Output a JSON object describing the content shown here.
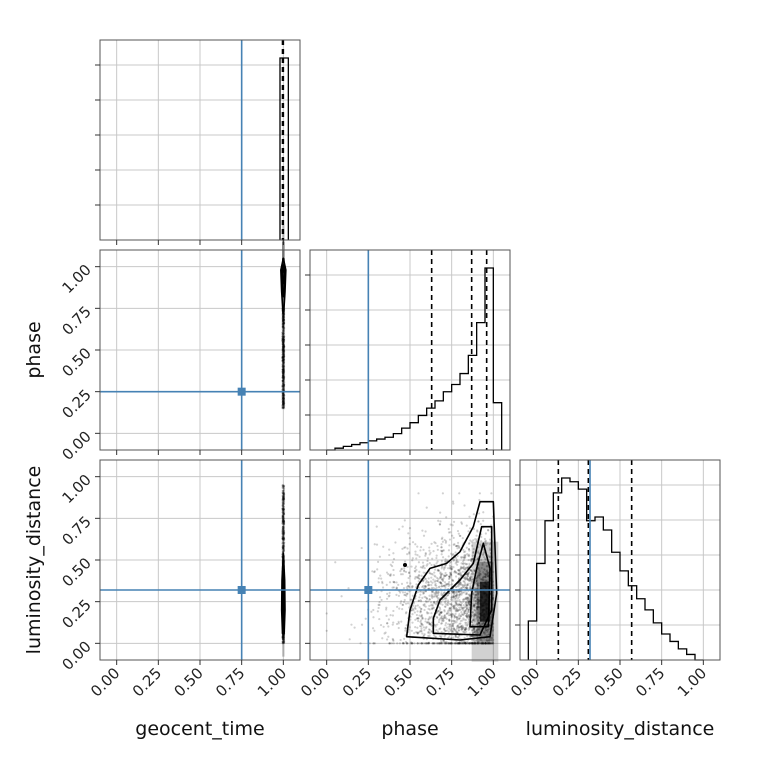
{
  "chart_data": {
    "type": "corner",
    "parameters": [
      {
        "name": "geocent_time",
        "label": "geocent_time"
      },
      {
        "name": "phase",
        "label": "phase"
      },
      {
        "name": "luminosity_distance",
        "label": "luminosity_distance"
      }
    ],
    "tick_values": [
      0.0,
      0.25,
      0.5,
      0.75,
      1.0
    ],
    "tick_labels": [
      "0.00",
      "0.25",
      "0.50",
      "0.75",
      "1.00"
    ],
    "axis_range": [
      -0.1,
      1.1
    ],
    "grid": true,
    "truth_color": "#4682b4",
    "truths": {
      "geocent_time": 0.75,
      "phase": 0.25,
      "luminosity_distance": 0.32
    },
    "quantiles": {
      "geocent_time": [
        0.995,
        0.998,
        1.0
      ],
      "phase": [
        0.63,
        0.87,
        0.96
      ],
      "luminosity_distance": [
        0.13,
        0.31,
        0.57
      ]
    },
    "histograms": {
      "geocent_time": {
        "edges": [
          0.98,
          1.0,
          1.03
        ],
        "counts": [
          1.0,
          1.0
        ]
      },
      "phase": {
        "edges": [
          0.0,
          0.05,
          0.1,
          0.15,
          0.2,
          0.25,
          0.3,
          0.35,
          0.4,
          0.45,
          0.5,
          0.55,
          0.6,
          0.65,
          0.7,
          0.75,
          0.8,
          0.85,
          0.9,
          0.95,
          1.0,
          1.05
        ],
        "counts": [
          0.0,
          0.01,
          0.02,
          0.03,
          0.04,
          0.05,
          0.06,
          0.07,
          0.09,
          0.12,
          0.15,
          0.19,
          0.23,
          0.27,
          0.32,
          0.36,
          0.42,
          0.52,
          0.7,
          1.0,
          0.26
        ]
      },
      "luminosity_distance": {
        "edges": [
          -0.05,
          0.0,
          0.05,
          0.1,
          0.15,
          0.2,
          0.25,
          0.3,
          0.35,
          0.4,
          0.45,
          0.5,
          0.55,
          0.6,
          0.65,
          0.7,
          0.75,
          0.8,
          0.85,
          0.9,
          0.95,
          1.0
        ],
        "counts": [
          0.21,
          0.52,
          0.75,
          0.9,
          0.98,
          0.96,
          0.92,
          0.75,
          0.77,
          0.7,
          0.58,
          0.48,
          0.4,
          0.33,
          0.27,
          0.2,
          0.14,
          0.1,
          0.06,
          0.03,
          0.0
        ]
      }
    },
    "joint": {
      "phase_vs_geocent_time": {
        "x": "geocent_time",
        "y": "phase",
        "scatter_x_range": [
          0.995,
          1.005
        ],
        "scatter_y_range": [
          0.15,
          0.75
        ],
        "density_peak": [
          1.0,
          0.95
        ],
        "contours": [
          [
            [
              0.985,
              0.98
            ],
            [
              1.0,
              1.05
            ],
            [
              1.015,
              0.98
            ],
            [
              1.01,
              0.85
            ],
            [
              1.002,
              0.72
            ],
            [
              0.998,
              0.72
            ],
            [
              0.99,
              0.85
            ]
          ],
          [
            [
              0.99,
              0.97
            ],
            [
              1.0,
              1.01
            ],
            [
              1.01,
              0.97
            ],
            [
              1.006,
              0.88
            ],
            [
              1.0,
              0.82
            ],
            [
              0.994,
              0.88
            ]
          ],
          [
            [
              0.993,
              0.96
            ],
            [
              1.0,
              0.98
            ],
            [
              1.007,
              0.96
            ],
            [
              1.0,
              0.9
            ]
          ]
        ]
      },
      "luminosity_distance_vs_geocent_time": {
        "x": "geocent_time",
        "y": "luminosity_distance",
        "scatter_x_range": [
          0.995,
          1.005
        ],
        "scatter_y_range": [
          0.0,
          0.95
        ],
        "density_peak": [
          1.0,
          0.22
        ],
        "contours": [
          [
            [
              0.995,
              0.06
            ],
            [
              1.005,
              0.06
            ],
            [
              1.01,
              0.2
            ],
            [
              1.008,
              0.38
            ],
            [
              1.0,
              0.54
            ],
            [
              0.992,
              0.38
            ],
            [
              0.99,
              0.2
            ]
          ],
          [
            [
              0.997,
              0.09
            ],
            [
              1.003,
              0.09
            ],
            [
              1.006,
              0.2
            ],
            [
              1.004,
              0.32
            ],
            [
              1.0,
              0.42
            ],
            [
              0.996,
              0.32
            ],
            [
              0.994,
              0.2
            ]
          ],
          [
            [
              0.998,
              0.14
            ],
            [
              1.002,
              0.14
            ],
            [
              1.003,
              0.22
            ],
            [
              1.0,
              0.28
            ],
            [
              0.997,
              0.22
            ]
          ]
        ]
      },
      "luminosity_distance_vs_phase": {
        "x": "phase",
        "y": "luminosity_distance",
        "scatter_x_range": [
          0.0,
          1.0
        ],
        "scatter_y_range": [
          0.0,
          0.9
        ],
        "density_peak": [
          0.95,
          0.25
        ],
        "marker": [
          0.47,
          0.47
        ],
        "contours": [
          [
            [
              0.48,
              0.04
            ],
            [
              0.8,
              0.02
            ],
            [
              0.98,
              0.04
            ],
            [
              1.02,
              0.3
            ],
            [
              1.0,
              0.85
            ],
            [
              0.92,
              0.85
            ],
            [
              0.88,
              0.7
            ],
            [
              0.8,
              0.55
            ],
            [
              0.72,
              0.48
            ],
            [
              0.62,
              0.45
            ],
            [
              0.55,
              0.35
            ],
            [
              0.5,
              0.2
            ]
          ],
          [
            [
              0.64,
              0.06
            ],
            [
              0.92,
              0.05
            ],
            [
              0.99,
              0.2
            ],
            [
              0.99,
              0.7
            ],
            [
              0.93,
              0.7
            ],
            [
              0.88,
              0.48
            ],
            [
              0.8,
              0.38
            ],
            [
              0.68,
              0.26
            ],
            [
              0.64,
              0.15
            ]
          ],
          [
            [
              0.86,
              0.1
            ],
            [
              0.97,
              0.1
            ],
            [
              0.98,
              0.45
            ],
            [
              0.94,
              0.6
            ],
            [
              0.9,
              0.45
            ],
            [
              0.87,
              0.3
            ]
          ]
        ]
      }
    }
  }
}
